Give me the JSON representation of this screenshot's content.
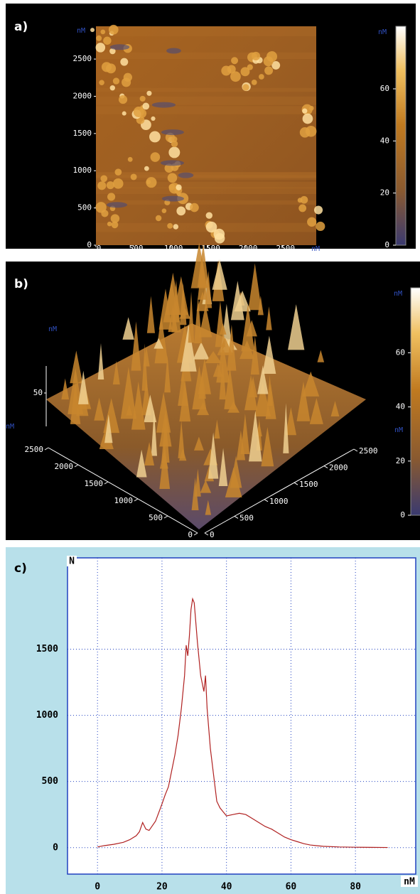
{
  "chart_data": [
    {
      "type": "image",
      "label": "a)",
      "x_unit": "nM",
      "y_unit": "nM",
      "xlim": [
        0,
        2950
      ],
      "ylim": [
        0,
        2940
      ],
      "xticks": [
        0,
        500,
        1000,
        1500,
        2000,
        2500
      ],
      "yticks": [
        0,
        500,
        1000,
        1500,
        2000,
        2500
      ],
      "colorbar": {
        "unit": "nM",
        "zlim": [
          0,
          84
        ],
        "ticks": [
          0,
          20,
          40,
          60
        ]
      }
    },
    {
      "type": "surface3d",
      "label": "b)",
      "x_unit": "nM",
      "y_unit": "nM",
      "z_unit": "nM",
      "xlim": [
        0,
        2500
      ],
      "ylim": [
        0,
        2500
      ],
      "zticks": [
        50
      ],
      "xticks": [
        0,
        500,
        1000,
        1500,
        2000,
        2500
      ],
      "yticks": [
        0,
        500,
        1000,
        1500,
        2000,
        2500
      ],
      "colorbar": {
        "unit": "nM",
        "zlim": [
          0,
          84
        ],
        "ticks": [
          0,
          20,
          40,
          60
        ]
      }
    },
    {
      "type": "line",
      "label": "c)",
      "y_label": "N",
      "x_label": "nM",
      "color": "#b02020",
      "grid": true,
      "xlim": [
        -9.3,
        98.7
      ],
      "ylim": [
        -200,
        2190
      ],
      "xticks": [
        0,
        20,
        40,
        60,
        80
      ],
      "yticks": [
        0,
        500,
        1000,
        1500
      ],
      "x": [
        0,
        2,
        5,
        8,
        10,
        12,
        13,
        14,
        15,
        16,
        18,
        20,
        21,
        22,
        23,
        24,
        25,
        26,
        27,
        27.5,
        28,
        28.5,
        29,
        29.5,
        30,
        30.5,
        31,
        32,
        33,
        33.5,
        34,
        35,
        36,
        37,
        38,
        39,
        40,
        42,
        44,
        46,
        48,
        50,
        52,
        54,
        56,
        58,
        60,
        62,
        64,
        66,
        68,
        70,
        75,
        80,
        85,
        90
      ],
      "values": [
        5,
        15,
        25,
        40,
        60,
        90,
        120,
        190,
        140,
        130,
        200,
        330,
        400,
        460,
        580,
        700,
        850,
        1050,
        1300,
        1530,
        1450,
        1600,
        1800,
        1880,
        1850,
        1700,
        1550,
        1300,
        1180,
        1300,
        1050,
        750,
        550,
        350,
        300,
        270,
        240,
        250,
        260,
        250,
        220,
        190,
        160,
        140,
        110,
        80,
        60,
        45,
        30,
        20,
        15,
        10,
        5,
        3,
        2,
        1
      ]
    }
  ]
}
